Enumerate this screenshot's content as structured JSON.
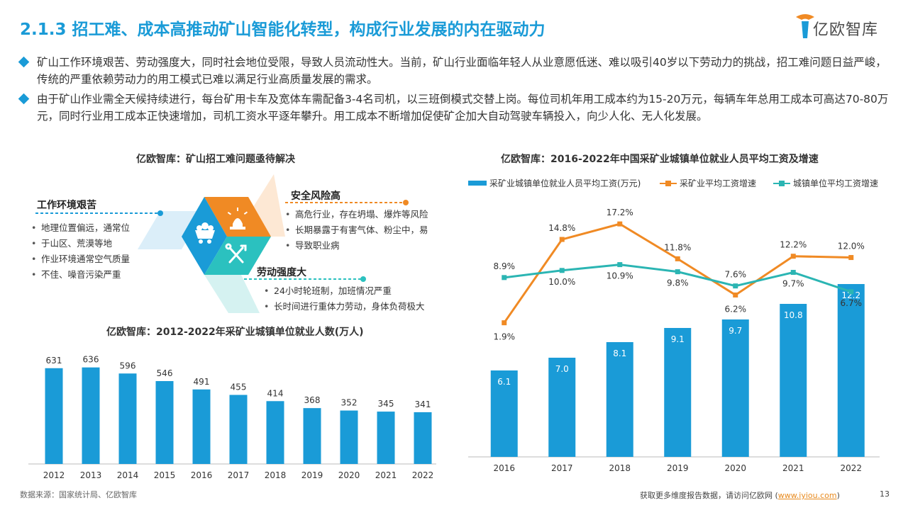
{
  "page": {
    "title": "2.1.3 招工难、成本高推动矿山智能化转型，构成行业发展的内在驱动力",
    "logo": "亿欧智库",
    "bullets": [
      "矿山工作环境艰苦、劳动强度大，同时社会地位受限，导致人员流动性大。当前，矿山行业面临年轻人从业意愿低迷、难以吸引40岁以下劳动力的挑战，招工难问题日益严峻，传统的严重依赖劳动力的用工模式已难以满足行业高质量发展的需求。",
      "由于矿山作业需全天候持续进行，每台矿用卡车及宽体车需配备3-4名司机，以三班倒模式交替上岗。每位司机年用工成本约为15-20万元，每辆车年总用工成本可高达70-80万元，同时行业用工成本正快速增加，司机工资水平逐年攀升。用工成本不断增加促使矿企加大自动驾驶车辆投入，向少人化、无人化发展。"
    ],
    "footer_source": "数据来源：国家统计局、亿欧智库",
    "footer_more": "获取更多维度报告数据，请访问亿欧网 (",
    "footer_link": "www.iyiou.com",
    "footer_close": ")",
    "page_number": "13"
  },
  "diagram": {
    "title": "亿欧智库：矿山招工难问题亟待解决",
    "colors": {
      "blue": "#1a9bd7",
      "orange": "#f08a24",
      "teal": "#2bc1bf"
    },
    "icons": [
      "mine-cart-icon",
      "siren-icon",
      "tools-icon"
    ],
    "categories": [
      {
        "name": "工作环境艰苦",
        "items": [
          "地理位置偏远，通常位",
          "于山区、荒漠等地",
          "作业环境通常空气质量",
          "不佳、噪音污染严重"
        ]
      },
      {
        "name": "安全风险高",
        "items": [
          "高危行业，存在坍塌、爆炸等风险",
          "长期暴露于有害气体、粉尘中，易",
          "导致职业病"
        ]
      },
      {
        "name": "劳动强度大",
        "items": [
          "24小时轮班制，加班情况严重",
          "长时间进行重体力劳动，身体负荷极大"
        ]
      }
    ]
  },
  "chart_data": [
    {
      "type": "bar",
      "title": "亿欧智库：2012-2022年采矿业城镇单位就业人数(万人)",
      "categories": [
        "2012",
        "2013",
        "2014",
        "2015",
        "2016",
        "2017",
        "2018",
        "2019",
        "2020",
        "2021",
        "2022"
      ],
      "values": [
        631,
        636,
        596,
        546,
        491,
        455,
        414,
        368,
        352,
        345,
        341
      ],
      "color": "#1a9bd7",
      "ylim": [
        0,
        700
      ],
      "grid": false
    },
    {
      "type": "bar+line",
      "title": "亿欧智库：2016-2022年中国采矿业城镇单位就业人员平均工资及增速",
      "categories": [
        "2016",
        "2017",
        "2018",
        "2019",
        "2020",
        "2021",
        "2022"
      ],
      "legend_position": "top",
      "series": [
        {
          "name": "采矿业城镇单位就业人员平均工资(万元)",
          "kind": "bar",
          "color": "#1a9bd7",
          "values": [
            6.1,
            7.0,
            8.1,
            9.1,
            9.7,
            10.8,
            12.2
          ],
          "labels": [
            "6.1",
            "7.0",
            "8.1",
            "9.1",
            "9.7",
            "10.8",
            "12.2"
          ]
        },
        {
          "name": "采矿业平均工资增速",
          "kind": "line",
          "color": "#f08a24",
          "values": [
            1.9,
            14.8,
            17.2,
            11.8,
            6.2,
            12.2,
            12.0
          ],
          "labels": [
            "1.9%",
            "14.8%",
            "17.2%",
            "11.8%",
            "6.2%",
            "12.2%",
            "12.0%"
          ]
        },
        {
          "name": "城镇单位平均工资增速",
          "kind": "line",
          "color": "#2bb5b3",
          "values": [
            8.9,
            10.0,
            10.9,
            9.8,
            7.6,
            9.7,
            6.7
          ],
          "labels": [
            "8.9%",
            "10.0%",
            "10.9%",
            "9.8%",
            "7.6%",
            "9.7%",
            "6.7%"
          ]
        }
      ],
      "bar_ylim": [
        0,
        20
      ],
      "grid": false
    }
  ]
}
